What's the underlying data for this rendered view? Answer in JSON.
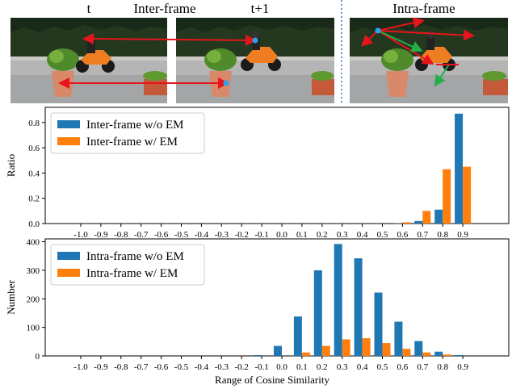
{
  "figure": {
    "labels": {
      "frame_t": "t",
      "inter_frame": "Inter-frame",
      "frame_t1": "t+1",
      "intra_frame": "Intra-frame"
    },
    "colors": {
      "blue": "#1f77b4",
      "orange": "#ff7f0e",
      "red_arrow": "#e8141b",
      "green_arrow": "#22b04a",
      "point": "#2aa3ee",
      "divider": "#3a6fd0"
    }
  },
  "chart_data": [
    {
      "type": "bar",
      "ylabel": "Ratio",
      "xlabel": "",
      "ylim": [
        0,
        0.92
      ],
      "yticks": [
        0.0,
        0.2,
        0.4,
        0.6,
        0.8
      ],
      "ytick_labels": [
        "0.0",
        "0.2",
        "0.4",
        "0.6",
        "0.8"
      ],
      "legend_position": "upper-left",
      "categories": [
        "-1.0",
        "-0.9",
        "-0.8",
        "-0.7",
        "-0.6",
        "-0.5",
        "-0.4",
        "-0.3",
        "-0.2",
        "-0.1",
        "0.0",
        "0.1",
        "0.2",
        "0.3",
        "0.4",
        "0.5",
        "0.6",
        "0.7",
        "0.8",
        "0.9"
      ],
      "series": [
        {
          "name": "Inter-frame w/o EM",
          "color": "#1f77b4",
          "values": [
            0,
            0,
            0,
            0,
            0,
            0,
            0,
            0,
            0,
            0,
            0,
            0,
            0,
            0,
            0,
            0,
            0.002,
            0.02,
            0.11,
            0.87
          ]
        },
        {
          "name": "Inter-frame w/ EM",
          "color": "#ff7f0e",
          "values": [
            0,
            0,
            0,
            0,
            0,
            0,
            0,
            0,
            0,
            0,
            0,
            0,
            0,
            0,
            0,
            0,
            0.01,
            0.1,
            0.43,
            0.45
          ]
        }
      ]
    },
    {
      "type": "bar",
      "ylabel": "Number",
      "xlabel": "Range of Cosine Similarity",
      "ylim": [
        0,
        410
      ],
      "yticks": [
        0,
        100,
        200,
        300,
        400
      ],
      "ytick_labels": [
        "0",
        "100",
        "200",
        "300",
        "400"
      ],
      "legend_position": "upper-left",
      "categories": [
        "-1.0",
        "-0.9",
        "-0.8",
        "-0.7",
        "-0.6",
        "-0.5",
        "-0.4",
        "-0.3",
        "-0.2",
        "-0.1",
        "0.0",
        "0.1",
        "0.2",
        "0.3",
        "0.4",
        "0.5",
        "0.6",
        "0.7",
        "0.8",
        "0.9"
      ],
      "series": [
        {
          "name": "Intra-frame w/o EM",
          "color": "#1f77b4",
          "values": [
            0,
            0,
            0,
            0,
            0,
            0,
            0,
            0,
            0,
            3,
            35,
            138,
            300,
            392,
            342,
            222,
            120,
            52,
            15,
            3
          ]
        },
        {
          "name": "Intra-frame w/ EM",
          "color": "#ff7f0e",
          "values": [
            0,
            0,
            0,
            0,
            0,
            0,
            0,
            0,
            0,
            0,
            0,
            12,
            35,
            58,
            62,
            45,
            25,
            12,
            5,
            0
          ]
        }
      ]
    }
  ]
}
